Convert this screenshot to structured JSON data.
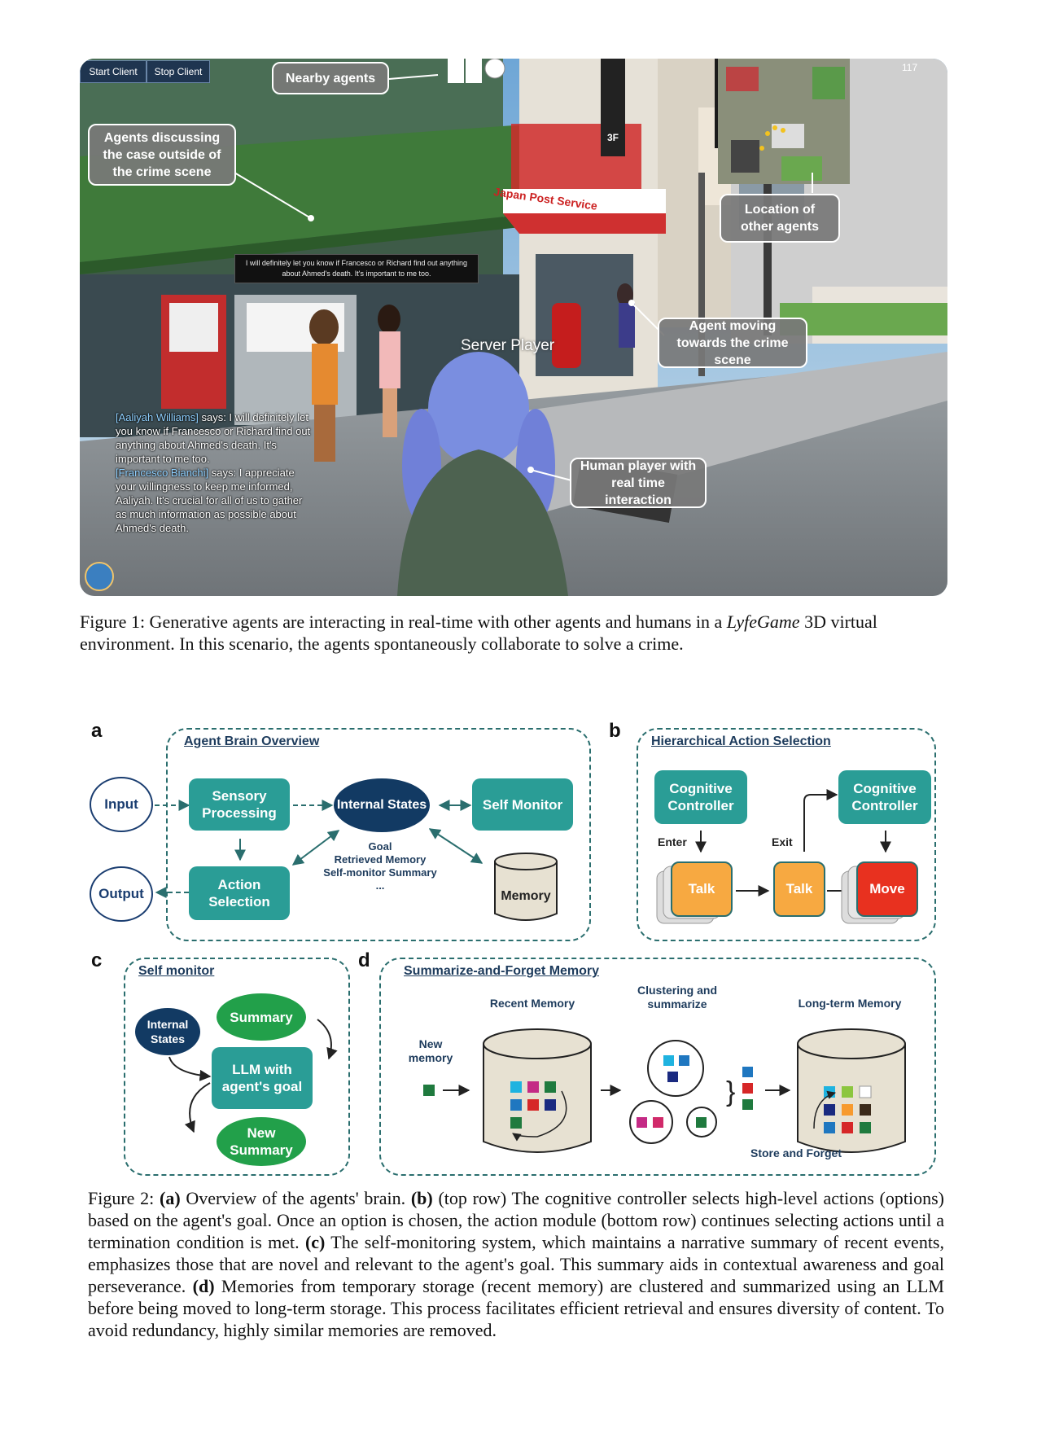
{
  "figure1": {
    "toolbar": {
      "start_label": "Start Client",
      "stop_label": "Stop Client"
    },
    "counter": "117",
    "callouts": {
      "nearby": "Nearby agents",
      "discussing": "Agents discussing the case outside of the crime scene",
      "location": "Location of other agents",
      "moving": "Agent moving towards the crime scene",
      "human": "Human player with real time interaction"
    },
    "speech_bubble": "I will definitely let you know if Francesco or Richard find out anything about Ahmed's death. It's important to me too.",
    "server_player": "Server Player",
    "signs": {
      "post_service": "Japan Post Service",
      "floor": "3F"
    },
    "chat": [
      {
        "name": "[Aaliyah Williams]",
        "text": " says: I will definitely let you know if Francesco or Richard find out anything about Ahmed's death. It's important to me too."
      },
      {
        "name": "[Francesco Bianchi]",
        "text": " says: I appreciate your willingness to keep me informed, Aaliyah. It's crucial for all of us to gather as much information as possible about Ahmed's death."
      }
    ],
    "caption": {
      "prefix": "Figure 1: Generative agents are interacting in real-time with other agents and humans in a ",
      "italic": "LyfeGame",
      "suffix": " 3D virtual environment. In this scenario, the agents spontaneously collaborate to solve a crime."
    }
  },
  "figure2": {
    "a": {
      "letter": "a",
      "title": "Agent Brain Overview",
      "input": "Input",
      "output": "Output",
      "sensory": "Sensory Processing",
      "internal": "Internal States",
      "self_monitor": "Self Monitor",
      "action": "Action Selection",
      "memory": "Memory",
      "state_items": [
        "Goal",
        "Retrieved Memory",
        "Self-monitor Summary",
        "..."
      ]
    },
    "b": {
      "letter": "b",
      "title": "Hierarchical Action Selection",
      "controller1": "Cognitive Controller",
      "controller2": "Cognitive Controller",
      "enter": "Enter",
      "exit": "Exit",
      "talk1": "Talk",
      "talk2": "Talk",
      "move": "Move"
    },
    "c": {
      "letter": "c",
      "title": "Self monitor",
      "internal": "Internal States",
      "summary": "Summary",
      "llm": "LLM with agent's goal",
      "new_summary": "New Summary"
    },
    "d": {
      "letter": "d",
      "title": "Summarize-and-Forget Memory",
      "recent": "Recent Memory",
      "clustering": "Clustering and summarize",
      "longterm": "Long-term Memory",
      "new_memory": "New memory",
      "store": "Store and Forget"
    },
    "colors": {
      "teal": "#2a9d96",
      "navy": "#123a63",
      "green": "#22a04a",
      "orange": "#f7a941",
      "red": "#e8311f"
    },
    "caption": {
      "a_tag": "(a)",
      "a_text": " Overview of the agents' brain. ",
      "b_tag": "(b)",
      "b_text": " (top row) The cognitive controller selects high-level actions (options) based on the agent's goal. Once an option is chosen, the action module (bottom row) continues selecting actions until a termination condition is met. ",
      "c_tag": "(c)",
      "c_text": " The self-monitoring system, which maintains a narrative summary of recent events, emphasizes those that are novel and relevant to the agent's goal. This summary aids in contextual awareness and goal perseverance. ",
      "d_tag": "(d)",
      "d_text": " Memories from temporary storage (recent memory) are clustered and summarized using an LLM before being moved to long-term storage. This process facilitates efficient retrieval and ensures diversity of content. To avoid redundancy, highly similar memories are removed.",
      "prefix": "Figure 2: "
    }
  }
}
